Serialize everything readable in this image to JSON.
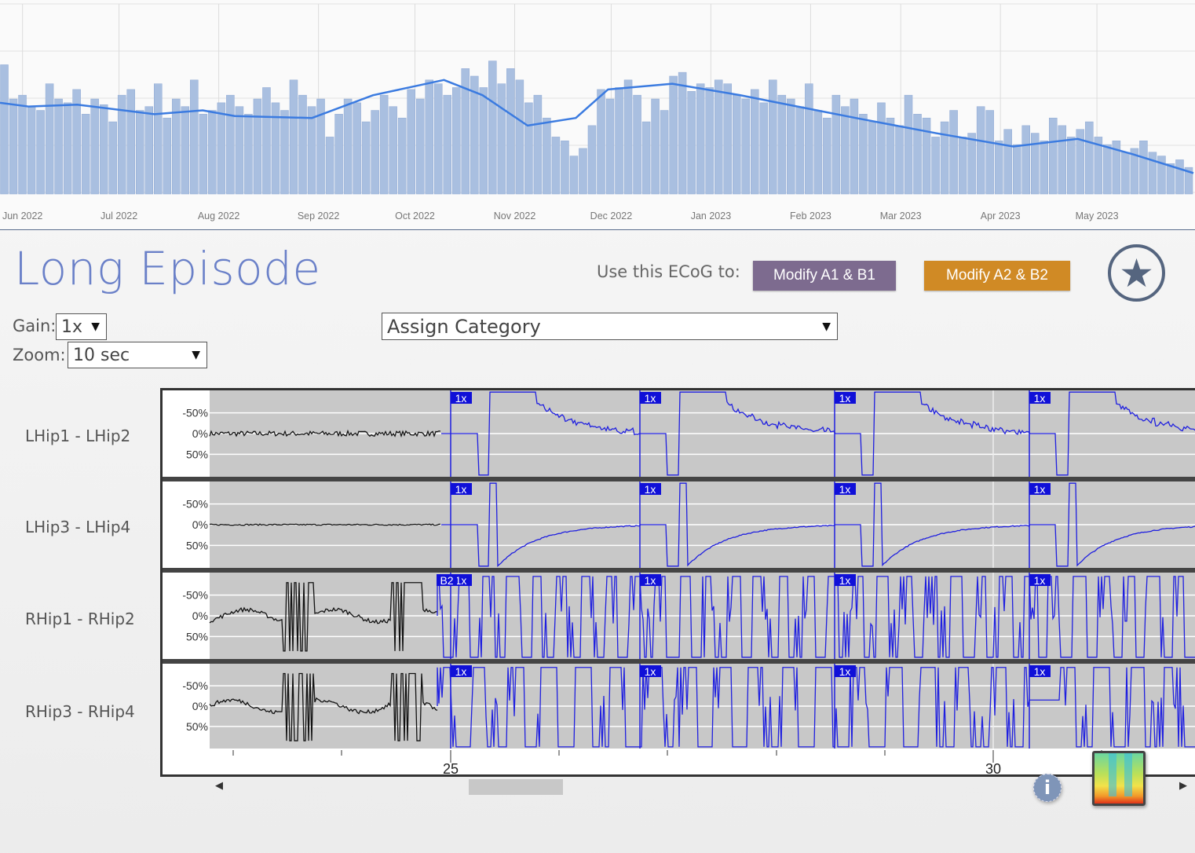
{
  "chart_data": {
    "type": "bar",
    "x_tick_labels": [
      "Jun 2022",
      "Jul 2022",
      "Aug 2022",
      "Sep 2022",
      "Oct 2022",
      "Nov 2022",
      "Dec 2022",
      "Jan 2023",
      "Feb 2023",
      "Mar 2023",
      "Apr 2023",
      "May 2023"
    ],
    "x_range": [
      "2022-05-25",
      "2023-05-31"
    ],
    "grid": true,
    "bar_color": "#a9bfe0",
    "line_color": "#3b7be0",
    "bar_values": [
      68,
      50,
      52,
      46,
      44,
      58,
      50,
      48,
      55,
      42,
      50,
      47,
      38,
      52,
      55,
      44,
      46,
      58,
      40,
      50,
      46,
      60,
      42,
      44,
      48,
      52,
      46,
      42,
      50,
      56,
      48,
      44,
      60,
      52,
      46,
      50,
      30,
      42,
      50,
      48,
      38,
      44,
      52,
      46,
      40,
      55,
      50,
      60,
      58,
      52,
      56,
      66,
      62,
      56,
      70,
      58,
      66,
      60,
      48,
      52,
      40,
      30,
      28,
      20,
      24,
      36,
      55,
      50,
      56,
      60,
      52,
      38,
      50,
      44,
      62,
      64,
      54,
      58,
      56,
      60,
      58,
      52,
      50,
      55,
      48,
      60,
      52,
      50,
      46,
      58,
      44,
      40,
      52,
      46,
      50,
      42,
      38,
      48,
      40,
      36,
      52,
      42,
      40,
      30,
      38,
      44,
      30,
      32,
      46,
      44,
      28,
      34,
      26,
      36,
      32,
      28,
      40,
      36,
      30,
      34,
      38,
      30,
      26,
      28,
      22,
      24,
      28,
      22,
      20,
      16,
      18,
      14
    ],
    "moving_average": {
      "dates": [
        "2022-05-25",
        "2022-06-03",
        "2022-06-18",
        "2022-07-12",
        "2022-07-27",
        "2022-08-06",
        "2022-08-30",
        "2022-09-18",
        "2022-10-10",
        "2022-10-22",
        "2022-11-05",
        "2022-11-20",
        "2022-11-30",
        "2022-12-20",
        "2023-01-10",
        "2023-01-22",
        "2023-02-15",
        "2023-03-12",
        "2023-04-05",
        "2023-04-25",
        "2023-05-12",
        "2023-05-31"
      ],
      "values": [
        48,
        46,
        47,
        42,
        44,
        41,
        40,
        52,
        60,
        52,
        36,
        40,
        55,
        58,
        52,
        48,
        40,
        32,
        25,
        29,
        21,
        11
      ]
    }
  },
  "header": {
    "title": "Long Episode",
    "use_label": "Use this ECoG to:",
    "modify_a1_label": "Modify A1 & B1",
    "modify_a2_label": "Modify A2 & B2",
    "modify_a1_color": "#7d6b8f",
    "modify_a2_color": "#d08a25"
  },
  "controls": {
    "gain_label": "Gain:",
    "gain_value": "1x",
    "zoom_label": "Zoom:",
    "zoom_value": "10 sec",
    "category_value": "Assign Category"
  },
  "ecog": {
    "channels": [
      "LHip1 - LHip2",
      "LHip3 - LHip4",
      "RHip1 - RHip2",
      "RHip3 - RHip4"
    ],
    "y_ticks": [
      "50%",
      "0%",
      "-50%"
    ],
    "x_ticks": [
      "25",
      "30"
    ],
    "marker_label": "1x",
    "b2_label": "B2",
    "trace_color": "#1f1fe0"
  },
  "footer": {
    "info_icon": "i"
  }
}
